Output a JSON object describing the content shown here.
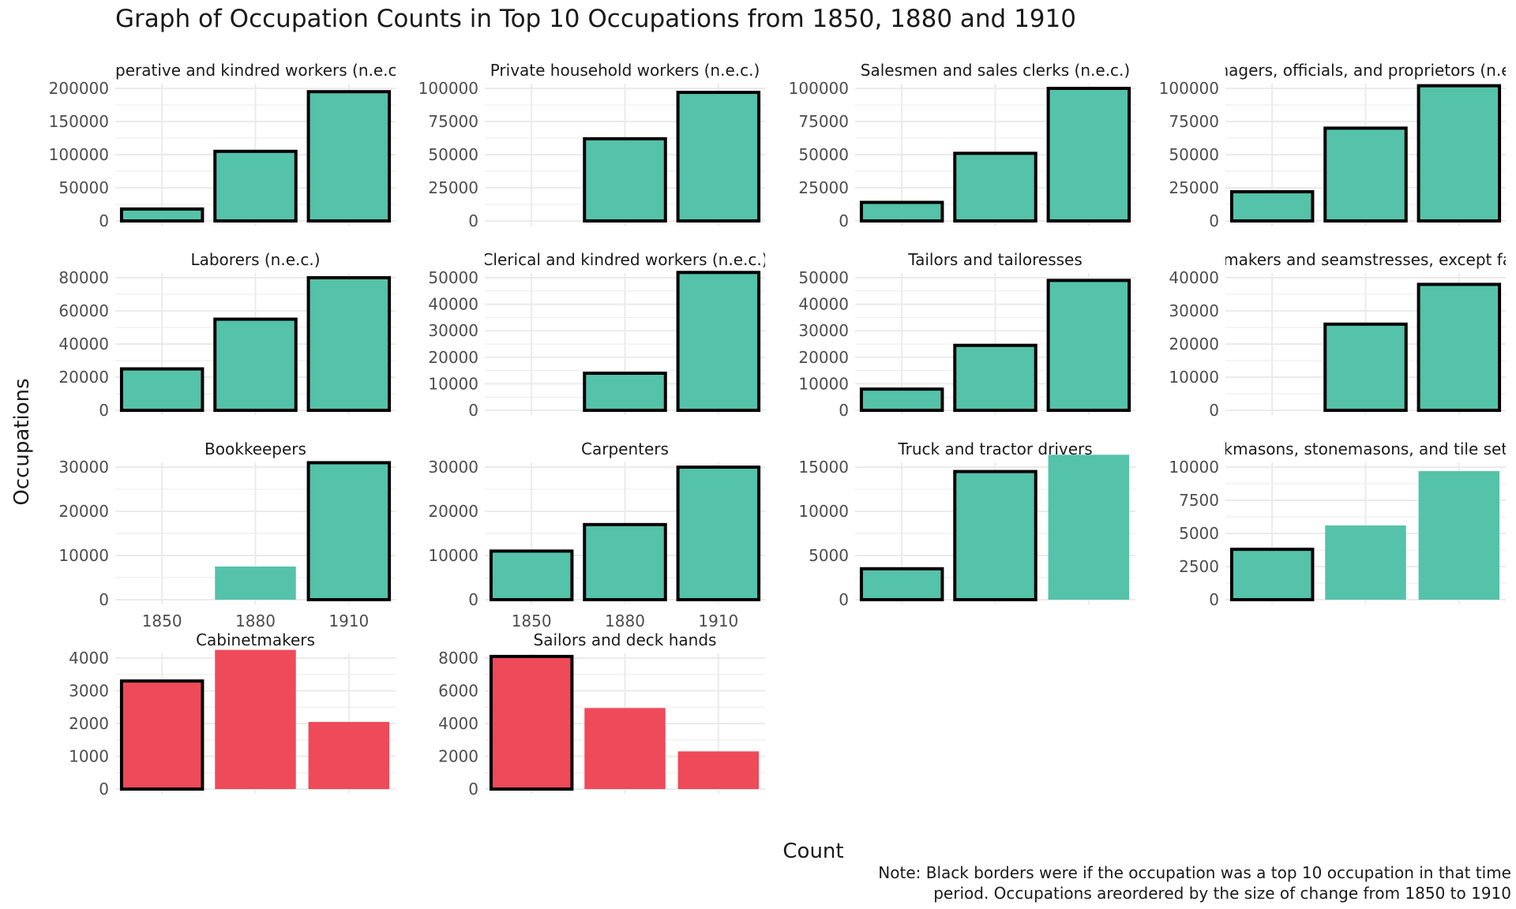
{
  "title": "Graph of Occupation Counts in Top 10 Occupations from 1850, 1880 and 1910",
  "ylabel": "Occupations",
  "xlabel": "Count",
  "note_lines": [
    "Note: Black borders were if the occupation was a top 10 occupation in that time",
    "period. Occupations areordered by the size of change from 1850 to 1910"
  ],
  "colors": {
    "increase": "#55C2AA",
    "decrease": "#EF4A5A",
    "border": "#000000",
    "grid": "#EBEBEB"
  },
  "chart_data": [
    {
      "type": "bar",
      "title": "Operative and kindred workers (n.e.c.)",
      "categories": [
        "1850",
        "1880",
        "1910"
      ],
      "values": [
        18000,
        105000,
        195000
      ],
      "top10": [
        true,
        true,
        true
      ],
      "ylim": [
        0,
        200000
      ],
      "yticks": [
        0,
        50000,
        100000,
        150000,
        200000
      ],
      "legend": "none",
      "grid": true
    },
    {
      "type": "bar",
      "title": "Private household workers (n.e.c.)",
      "categories": [
        "1850",
        "1880",
        "1910"
      ],
      "values": [
        null,
        62000,
        97000
      ],
      "top10": [
        false,
        true,
        true
      ],
      "ylim": [
        0,
        100000
      ],
      "yticks": [
        0,
        25000,
        50000,
        75000,
        100000
      ],
      "grid": true
    },
    {
      "type": "bar",
      "title": "Salesmen and sales clerks (n.e.c.)",
      "categories": [
        "1850",
        "1880",
        "1910"
      ],
      "values": [
        14000,
        51000,
        100000
      ],
      "top10": [
        true,
        true,
        true
      ],
      "ylim": [
        0,
        100000
      ],
      "yticks": [
        0,
        25000,
        50000,
        75000,
        100000
      ],
      "grid": true
    },
    {
      "type": "bar",
      "title": "Managers, officials, and proprietors (n.e.c.)",
      "categories": [
        "1850",
        "1880",
        "1910"
      ],
      "values": [
        22000,
        70000,
        102000
      ],
      "top10": [
        true,
        true,
        true
      ],
      "ylim": [
        0,
        100000
      ],
      "yticks": [
        0,
        25000,
        50000,
        75000,
        100000
      ],
      "grid": true
    },
    {
      "type": "bar",
      "title": "Laborers (n.e.c.)",
      "categories": [
        "1850",
        "1880",
        "1910"
      ],
      "values": [
        25000,
        55000,
        80000
      ],
      "top10": [
        true,
        true,
        true
      ],
      "ylim": [
        0,
        80000
      ],
      "yticks": [
        0,
        20000,
        40000,
        60000,
        80000
      ],
      "grid": true
    },
    {
      "type": "bar",
      "title": "Clerical and kindred workers (n.e.c.)",
      "categories": [
        "1850",
        "1880",
        "1910"
      ],
      "values": [
        null,
        14000,
        52000
      ],
      "top10": [
        false,
        true,
        true
      ],
      "ylim": [
        0,
        50000
      ],
      "yticks": [
        0,
        10000,
        20000,
        30000,
        40000,
        50000
      ],
      "grid": true
    },
    {
      "type": "bar",
      "title": "Tailors and tailoresses",
      "categories": [
        "1850",
        "1880",
        "1910"
      ],
      "values": [
        8000,
        24500,
        49000
      ],
      "top10": [
        true,
        true,
        true
      ],
      "ylim": [
        0,
        50000
      ],
      "yticks": [
        0,
        10000,
        20000,
        30000,
        40000,
        50000
      ],
      "grid": true
    },
    {
      "type": "bar",
      "title": "Dressmakers and seamstresses, except factory",
      "categories": [
        "1850",
        "1880",
        "1910"
      ],
      "values": [
        null,
        26000,
        38000
      ],
      "top10": [
        false,
        true,
        true
      ],
      "ylim": [
        0,
        40000
      ],
      "yticks": [
        0,
        10000,
        20000,
        30000,
        40000
      ],
      "grid": true
    },
    {
      "type": "bar",
      "title": "Bookkeepers",
      "categories": [
        "1850",
        "1880",
        "1910"
      ],
      "values": [
        null,
        7500,
        31000
      ],
      "top10": [
        false,
        false,
        true
      ],
      "ylim": [
        0,
        30000
      ],
      "yticks": [
        0,
        10000,
        20000,
        30000
      ],
      "grid": true
    },
    {
      "type": "bar",
      "title": "Carpenters",
      "categories": [
        "1850",
        "1880",
        "1910"
      ],
      "values": [
        11000,
        17000,
        30000
      ],
      "top10": [
        true,
        true,
        true
      ],
      "ylim": [
        0,
        30000
      ],
      "yticks": [
        0,
        10000,
        20000,
        30000
      ],
      "grid": true
    },
    {
      "type": "bar",
      "title": "Truck and tractor drivers",
      "categories": [
        "1850",
        "1880",
        "1910"
      ],
      "values": [
        3500,
        14500,
        16400
      ],
      "top10": [
        true,
        true,
        false
      ],
      "ylim": [
        0,
        15000
      ],
      "yticks": [
        0,
        5000,
        10000,
        15000
      ],
      "grid": true
    },
    {
      "type": "bar",
      "title": "Brickmasons, stonemasons, and tile setters",
      "categories": [
        "1850",
        "1880",
        "1910"
      ],
      "values": [
        3800,
        5600,
        9700
      ],
      "top10": [
        true,
        false,
        false
      ],
      "ylim": [
        0,
        10000
      ],
      "yticks": [
        0,
        2500,
        5000,
        7500,
        10000
      ],
      "grid": true
    },
    {
      "type": "bar",
      "title": "Cabinetmakers",
      "categories": [
        "1850",
        "1880",
        "1910"
      ],
      "values": [
        3300,
        4250,
        2050
      ],
      "top10": [
        true,
        false,
        false
      ],
      "ylim": [
        0,
        4000
      ],
      "yticks": [
        0,
        1000,
        2000,
        3000,
        4000
      ],
      "grid": true
    },
    {
      "type": "bar",
      "title": "Sailors and deck hands",
      "categories": [
        "1850",
        "1880",
        "1910"
      ],
      "values": [
        8100,
        4950,
        2300
      ],
      "top10": [
        true,
        false,
        false
      ],
      "ylim": [
        0,
        8000
      ],
      "yticks": [
        0,
        2000,
        4000,
        6000,
        8000
      ],
      "grid": true
    }
  ]
}
